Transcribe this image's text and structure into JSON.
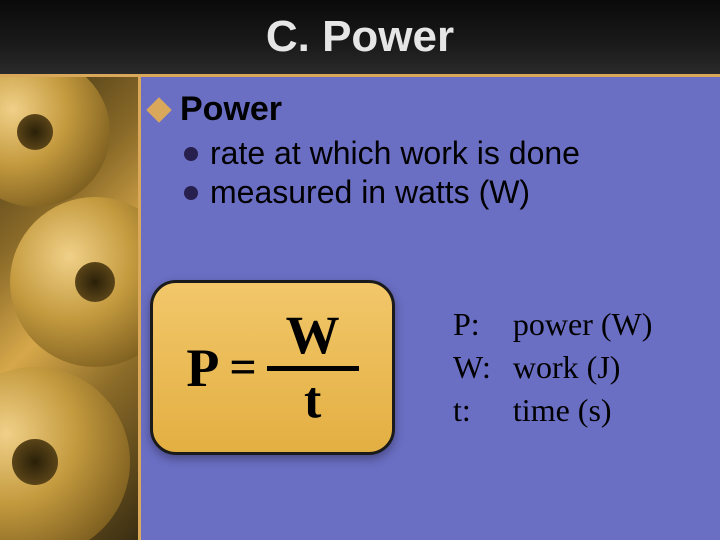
{
  "slide": {
    "title": "C. Power",
    "background_color": "#6b6fc4",
    "top_band_color": "#0a0a0a",
    "accent_color": "#d9a85b",
    "title_color": "#e6e6e6",
    "title_fontsize": 44
  },
  "bullets": {
    "l1_marker": "diamond",
    "l1_marker_color": "#d9a85b",
    "l1_text": "Power",
    "l2_marker": "disc",
    "l2_marker_color": "#271f4e",
    "items": [
      "rate at which work is done",
      "measured in watts (W)"
    ],
    "l1_fontsize": 34,
    "l2_fontsize": 32
  },
  "formula": {
    "lhs": "P",
    "eq": "=",
    "numerator": "W",
    "denominator": "t",
    "box_bg_top": "#f2c76a",
    "box_bg_bottom": "#e3af42",
    "box_border_color": "#1a1a1a",
    "box_border_radius": 26,
    "font": "Times New Roman",
    "fontsize_main": 54
  },
  "legend": {
    "rows": [
      {
        "sym": "P:",
        "desc": "power (W)"
      },
      {
        "sym": "W:",
        "desc": "work (J)"
      },
      {
        "sym": "t:",
        "desc": "time (s)"
      }
    ],
    "fontsize": 32,
    "font": "Times New Roman"
  },
  "sidebar_image": {
    "description": "gold-toned photograph of interlocking gears",
    "tint_colors": [
      "#3a2e12",
      "#8a6a28",
      "#d7a84a"
    ]
  }
}
